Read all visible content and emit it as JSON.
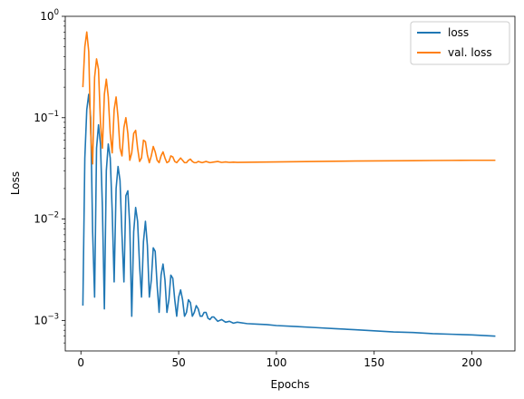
{
  "chart_data": {
    "type": "line",
    "xlabel": "Epochs",
    "ylabel": "Loss",
    "xlim": [
      -8,
      222
    ],
    "ylim": [
      0.0005,
      1
    ],
    "yscale": "log",
    "grid": false,
    "legend_position": "top-right",
    "x_ticks": [
      0,
      50,
      100,
      150,
      200
    ],
    "x_tick_labels": [
      "0",
      "50",
      "100",
      "150",
      "200"
    ],
    "y_ticks": [
      0.001,
      0.01,
      0.1,
      1
    ],
    "y_tick_labels": [
      "10",
      "10",
      "10",
      "10"
    ],
    "y_tick_exponents": [
      "−3",
      "−2",
      "−1",
      "0"
    ],
    "series": [
      {
        "name": "loss",
        "color": "#1f77b4",
        "x": [
          1,
          2,
          3,
          4,
          5,
          6,
          7,
          8,
          9,
          10,
          11,
          12,
          13,
          14,
          15,
          16,
          17,
          18,
          19,
          20,
          21,
          22,
          23,
          24,
          25,
          26,
          27,
          28,
          29,
          30,
          31,
          32,
          33,
          34,
          35,
          36,
          37,
          38,
          39,
          40,
          41,
          42,
          43,
          44,
          45,
          46,
          47,
          48,
          49,
          50,
          51,
          52,
          53,
          54,
          55,
          56,
          57,
          58,
          59,
          60,
          61,
          62,
          63,
          64,
          65,
          66,
          67,
          68,
          70,
          72,
          74,
          76,
          78,
          80,
          85,
          90,
          95,
          100,
          110,
          120,
          130,
          140,
          150,
          160,
          170,
          180,
          190,
          200,
          212
        ],
        "y": [
          0.0014,
          0.04,
          0.12,
          0.17,
          0.1,
          0.0075,
          0.0017,
          0.05,
          0.085,
          0.055,
          0.013,
          0.0013,
          0.03,
          0.055,
          0.04,
          0.012,
          0.0024,
          0.02,
          0.033,
          0.024,
          0.007,
          0.0024,
          0.017,
          0.019,
          0.0085,
          0.0011,
          0.0075,
          0.013,
          0.0095,
          0.0035,
          0.0017,
          0.006,
          0.0095,
          0.0055,
          0.0017,
          0.0025,
          0.0052,
          0.0048,
          0.0022,
          0.0012,
          0.0028,
          0.0036,
          0.0025,
          0.0012,
          0.0016,
          0.0028,
          0.0026,
          0.0016,
          0.0011,
          0.0017,
          0.002,
          0.0016,
          0.0011,
          0.0012,
          0.0016,
          0.0015,
          0.0011,
          0.0012,
          0.0014,
          0.0013,
          0.0011,
          0.0011,
          0.0012,
          0.0012,
          0.00105,
          0.00102,
          0.00108,
          0.00108,
          0.00098,
          0.00102,
          0.00096,
          0.00098,
          0.00094,
          0.00096,
          0.00093,
          0.00092,
          0.00091,
          0.00089,
          0.00087,
          0.00085,
          0.00083,
          0.00081,
          0.00079,
          0.00077,
          0.00076,
          0.00074,
          0.00073,
          0.00072,
          0.0007
        ]
      },
      {
        "name": "val. loss",
        "color": "#ff7f0e",
        "x": [
          1,
          2,
          3,
          4,
          5,
          6,
          7,
          8,
          9,
          10,
          11,
          12,
          13,
          14,
          15,
          16,
          17,
          18,
          19,
          20,
          21,
          22,
          23,
          24,
          25,
          26,
          27,
          28,
          29,
          30,
          31,
          32,
          33,
          34,
          35,
          36,
          37,
          38,
          39,
          40,
          41,
          42,
          43,
          44,
          45,
          46,
          47,
          48,
          49,
          50,
          51,
          52,
          53,
          54,
          55,
          56,
          57,
          58,
          59,
          60,
          62,
          64,
          66,
          68,
          70,
          72,
          74,
          76,
          78,
          80,
          85,
          90,
          100,
          110,
          120,
          130,
          140,
          150,
          160,
          170,
          180,
          190,
          200,
          212
        ],
        "y": [
          0.2,
          0.5,
          0.7,
          0.45,
          0.07,
          0.035,
          0.25,
          0.38,
          0.3,
          0.09,
          0.05,
          0.17,
          0.24,
          0.16,
          0.07,
          0.045,
          0.12,
          0.16,
          0.1,
          0.05,
          0.042,
          0.08,
          0.1,
          0.07,
          0.038,
          0.045,
          0.07,
          0.075,
          0.05,
          0.037,
          0.04,
          0.06,
          0.058,
          0.043,
          0.036,
          0.042,
          0.052,
          0.046,
          0.038,
          0.036,
          0.042,
          0.046,
          0.04,
          0.036,
          0.037,
          0.042,
          0.041,
          0.037,
          0.036,
          0.038,
          0.04,
          0.038,
          0.036,
          0.036,
          0.038,
          0.039,
          0.037,
          0.036,
          0.036,
          0.037,
          0.036,
          0.037,
          0.036,
          0.0365,
          0.037,
          0.0362,
          0.0366,
          0.0362,
          0.0364,
          0.0362,
          0.0363,
          0.0364,
          0.0366,
          0.0368,
          0.037,
          0.0372,
          0.0374,
          0.0375,
          0.0376,
          0.0377,
          0.0378,
          0.0379,
          0.038,
          0.038
        ]
      }
    ]
  }
}
